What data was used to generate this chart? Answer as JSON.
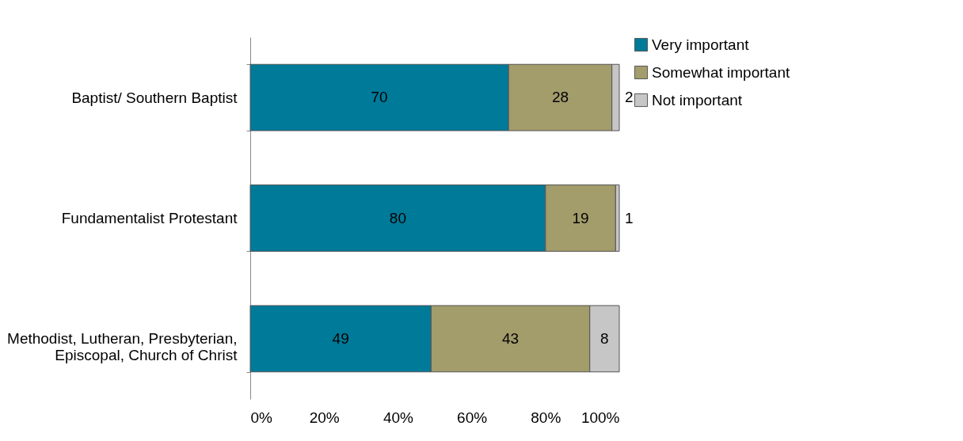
{
  "chart_data": {
    "type": "bar",
    "orientation": "horizontal",
    "stacked": true,
    "data_labels": true,
    "legend": "right",
    "categories": [
      "Baptist/ Southern Baptist",
      "Fundamentalist Protestant",
      "Methodist, Lutheran, Presbyterian, Episcopal, Church of Christ"
    ],
    "xlim": [
      0,
      100
    ],
    "xticks": [
      {
        "value": 0,
        "label": "0%"
      },
      {
        "value": 20,
        "label": "20%"
      },
      {
        "value": 40,
        "label": "40%"
      },
      {
        "value": 60,
        "label": "60%"
      },
      {
        "value": 80,
        "label": "80%"
      },
      {
        "value": 100,
        "label": "100%"
      }
    ],
    "series": [
      {
        "name": "Very important",
        "color": "#007a99",
        "values": [
          70,
          80,
          49
        ]
      },
      {
        "name": "Somewhat important",
        "color": "#a39c6b",
        "values": [
          28,
          19,
          43
        ]
      },
      {
        "name": "Not important",
        "color": "#c6c6c6",
        "values": [
          2,
          1,
          8
        ]
      }
    ]
  }
}
